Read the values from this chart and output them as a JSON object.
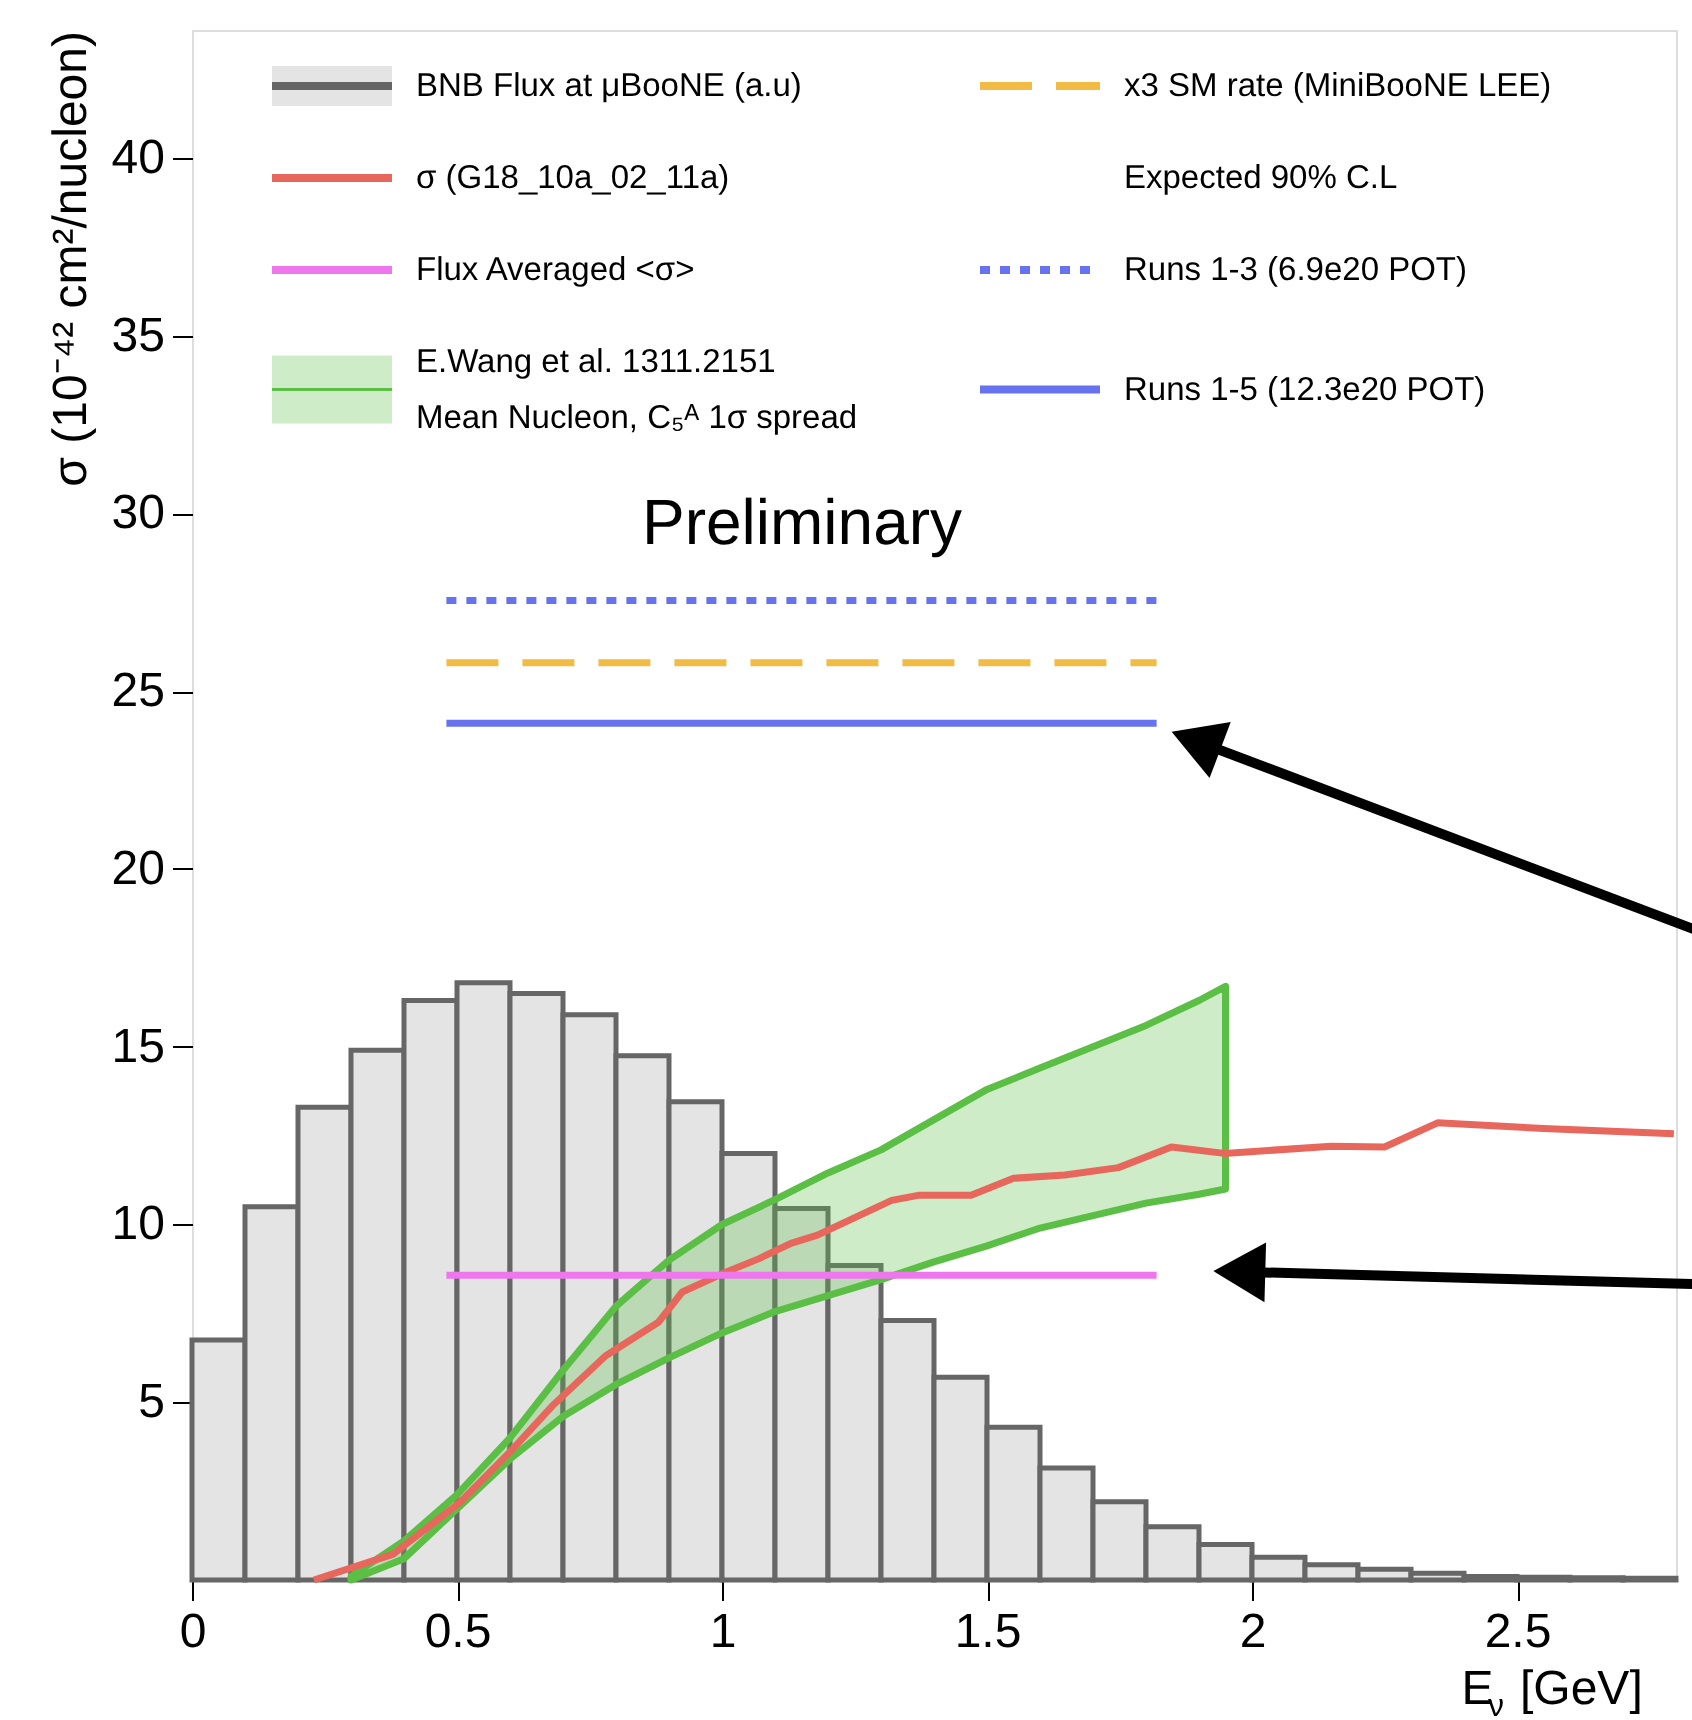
{
  "chart_data": {
    "type": "line",
    "xlabel": "E$_{ν}$ [GeV]",
    "ylabel": "σ (10⁻⁴² cm²/nucleon)",
    "xlim": [
      0,
      2.8
    ],
    "ylim": [
      0,
      43.6
    ],
    "xticks": [
      0,
      0.5,
      1,
      1.5,
      2,
      2.5
    ],
    "yticks": [
      5,
      10,
      15,
      20,
      25,
      30,
      35,
      40
    ],
    "legend": "top",
    "legend_title": "Expected 90% C.L",
    "annotations": [
      "Preliminary"
    ],
    "series": [
      {
        "name": "BNB Flux at μBooNE (a.u)",
        "type": "histogram",
        "color": "#666666",
        "bins": [
          0,
          0.1,
          0.2,
          0.3,
          0.4,
          0.5,
          0.6,
          0.7,
          0.8,
          0.9,
          1.0,
          1.1,
          1.2,
          1.3,
          1.4,
          1.5,
          1.6,
          1.7,
          1.8,
          1.9,
          2.0,
          2.1,
          2.2,
          2.3,
          2.4,
          2.5,
          2.6,
          2.7,
          2.8
        ],
        "values": [
          6.75,
          10.5,
          13.3,
          14.9,
          16.3,
          16.8,
          16.5,
          15.9,
          14.75,
          13.45,
          12.0,
          10.45,
          8.85,
          7.3,
          5.7,
          4.3,
          3.15,
          2.2,
          1.5,
          1.0,
          0.64,
          0.43,
          0.3,
          0.19,
          0.1,
          0.08,
          0.06,
          0.05
        ]
      },
      {
        "name": "E.Wang et al. 1311.2151\nMean Nucleon, C₅ᴬ 1σ spread",
        "color": "#5bbf45",
        "x": [
          0.3,
          0.4,
          0.5,
          0.6,
          0.7,
          0.8,
          0.9,
          1.0,
          1.1,
          1.2,
          1.3,
          1.4,
          1.5,
          1.6,
          1.7,
          1.8,
          1.9,
          1.95
        ],
        "values": [
          null,
          null,
          null,
          null,
          null,
          null,
          null,
          null,
          null,
          null,
          null,
          null,
          null,
          null,
          null,
          null,
          null,
          null
        ],
        "lower": [
          0,
          0.6,
          2.0,
          3.4,
          4.6,
          5.5,
          6.25,
          6.95,
          7.55,
          8.0,
          8.45,
          8.95,
          9.4,
          9.9,
          10.25,
          10.6,
          10.85,
          11.0
        ],
        "upper": [
          0.1,
          1.1,
          2.4,
          4.0,
          5.9,
          7.7,
          9.0,
          10.0,
          10.7,
          11.45,
          12.1,
          12.95,
          13.8,
          14.4,
          15.0,
          15.6,
          16.3,
          16.7
        ]
      },
      {
        "name": "σ (G18_10a_02_11a)",
        "color": "#e8675c",
        "line_style": "solid",
        "x": [
          0.23,
          0.38,
          0.505,
          0.605,
          0.68,
          0.78,
          0.88,
          0.925,
          1.007,
          1.07,
          1.13,
          1.18,
          1.32,
          1.37,
          1.47,
          1.55,
          1.647,
          1.748,
          1.848,
          1.948,
          2.15,
          2.25,
          2.35,
          2.55,
          2.796
        ],
        "values": [
          0.0,
          0.73,
          2.18,
          3.68,
          4.9,
          6.3,
          7.25,
          8.1,
          8.66,
          9.04,
          9.47,
          9.7,
          10.68,
          10.82,
          10.82,
          11.3,
          11.39,
          11.6,
          12.18,
          12.0,
          12.2,
          12.18,
          12.86,
          12.7,
          12.55
        ]
      },
      {
        "name": "Flux Averaged <σ>",
        "color": "#ee77ee",
        "line_style": "solid",
        "x": [
          0.48,
          1.82
        ],
        "values": [
          8.57,
          8.57
        ]
      },
      {
        "name": "x3 SM rate (MiniBooNE LEE)",
        "color": "#f2bb44",
        "line_style": "dashed",
        "x": [
          0.48,
          1.82
        ],
        "values": [
          25.8,
          25.8
        ]
      },
      {
        "name": "Runs 1-3 (6.9e20 POT)",
        "color": "#6672ee",
        "line_style": "dotted",
        "x": [
          0.48,
          1.82
        ],
        "values": [
          27.55,
          27.55
        ]
      },
      {
        "name": "Runs 1-5 (12.3e20 POT)",
        "color": "#6672ee",
        "line_style": "solid",
        "x": [
          0.48,
          1.82
        ],
        "values": [
          24.1,
          24.1
        ]
      }
    ]
  }
}
